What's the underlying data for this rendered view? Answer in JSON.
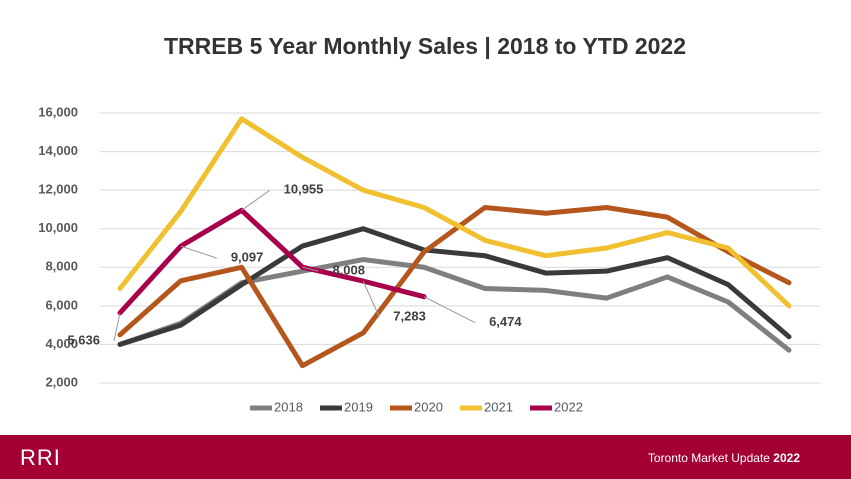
{
  "chart_data": {
    "type": "line",
    "title": "TRREB 5 Year Monthly Sales | 2018 to YTD 2022",
    "categories": [
      null,
      null,
      null,
      null,
      null,
      null,
      null,
      null,
      null,
      null,
      null,
      null
    ],
    "series": [
      {
        "name": "2018",
        "color": "#7f7f7f",
        "values": [
          4000,
          5100,
          7200,
          7800,
          8400,
          8000,
          6900,
          6800,
          6400,
          7500,
          6200,
          3700
        ]
      },
      {
        "name": "2019",
        "color": "#3a3a3a",
        "values": [
          4000,
          5000,
          7100,
          9100,
          10000,
          8900,
          8600,
          7700,
          7800,
          8500,
          7100,
          4400
        ]
      },
      {
        "name": "2020",
        "color": "#b5561c",
        "values": [
          4500,
          7300,
          8000,
          2900,
          4600,
          8800,
          11100,
          10800,
          11100,
          10600,
          8800,
          7200
        ]
      },
      {
        "name": "2021",
        "color": "#f0c030",
        "values": [
          6900,
          10900,
          15700,
          13700,
          12000,
          11100,
          9400,
          8600,
          9000,
          9800,
          9000,
          6000
        ]
      },
      {
        "name": "2022",
        "color": "#a8004a",
        "values": [
          5636,
          9097,
          10955,
          8008,
          7283,
          6474,
          null,
          null,
          null,
          null,
          null,
          null
        ],
        "value_labels": [
          "5,636",
          "9,097",
          "10,955",
          "8,008",
          "7,283",
          "6,474",
          null,
          null,
          null,
          null,
          null,
          null
        ]
      }
    ],
    "ylim": [
      2000,
      16000
    ],
    "yticks": [
      {
        "value": 2000,
        "label": "2,000"
      },
      {
        "value": 4000,
        "label": "4,000"
      },
      {
        "value": 6000,
        "label": "6,000"
      },
      {
        "value": 8000,
        "label": "8,000"
      },
      {
        "value": 10000,
        "label": "10,000"
      },
      {
        "value": 12000,
        "label": "12,000"
      },
      {
        "value": 14000,
        "label": "14,000"
      },
      {
        "value": 16000,
        "label": "16,000"
      }
    ],
    "grid": true,
    "legend": "bottom"
  },
  "footer": {
    "logo": "RRI",
    "text": "Toronto Market Update",
    "year": "2022"
  }
}
